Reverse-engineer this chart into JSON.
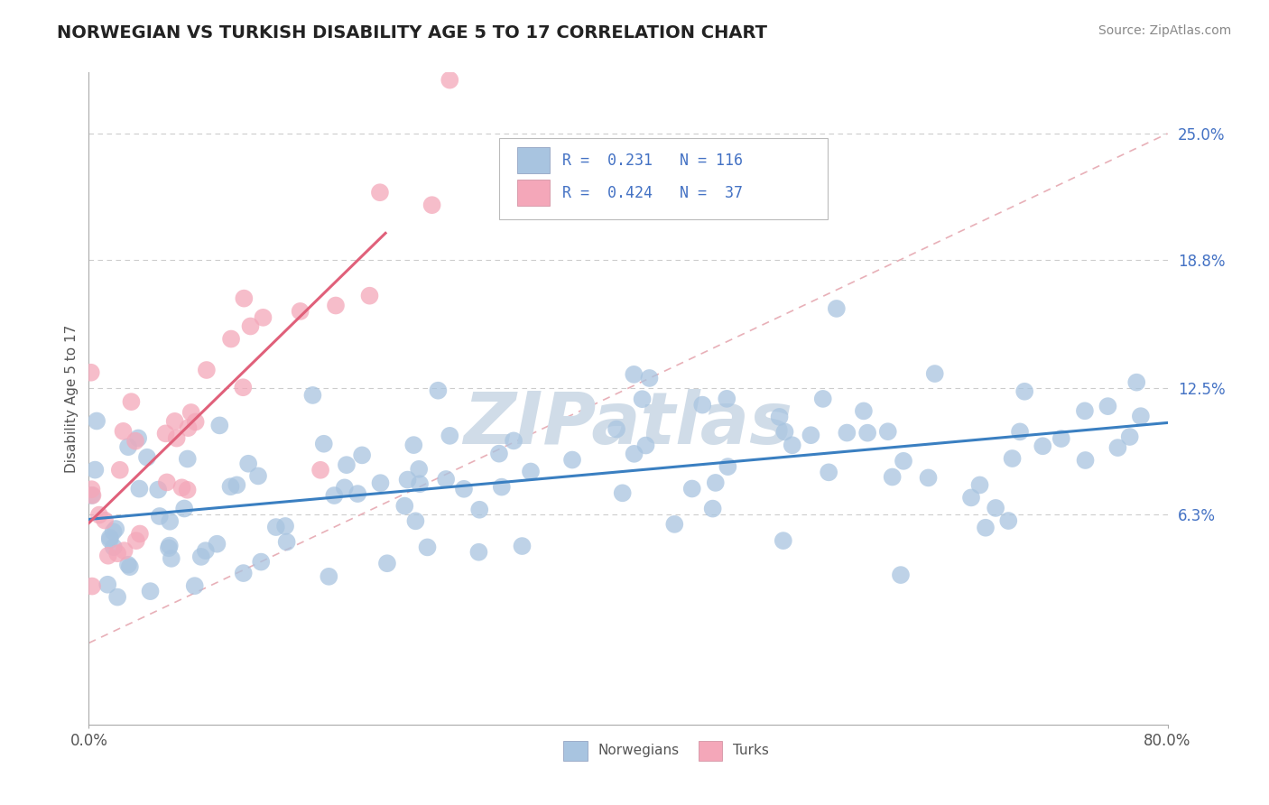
{
  "title": "NORWEGIAN VS TURKISH DISABILITY AGE 5 TO 17 CORRELATION CHART",
  "source": "Source: ZipAtlas.com",
  "ylabel": "Disability Age 5 to 17",
  "xlim": [
    0.0,
    0.8
  ],
  "ylim": [
    -0.04,
    0.28
  ],
  "ytick_positions": [
    0.063,
    0.125,
    0.188,
    0.25
  ],
  "ytick_labels": [
    "6.3%",
    "12.5%",
    "18.8%",
    "25.0%"
  ],
  "norwegian_color": "#a8c4e0",
  "turkish_color": "#f4a7b9",
  "norwegian_line_color": "#3a7fc1",
  "turkish_line_color": "#e0607a",
  "ref_line_color": "#e8b0b8",
  "legend_r_norwegian": "0.231",
  "legend_n_norwegian": "116",
  "legend_r_turkish": "0.424",
  "legend_n_turkish": "37",
  "legend_label_norwegian": "Norwegians",
  "legend_label_turkish": "Turks",
  "background_color": "#ffffff",
  "grid_color": "#cccccc",
  "title_fontsize": 14,
  "source_fontsize": 10,
  "axis_label_fontsize": 11,
  "tick_fontsize": 12,
  "watermark_color": "#d0dce8",
  "watermark_fontsize": 58
}
